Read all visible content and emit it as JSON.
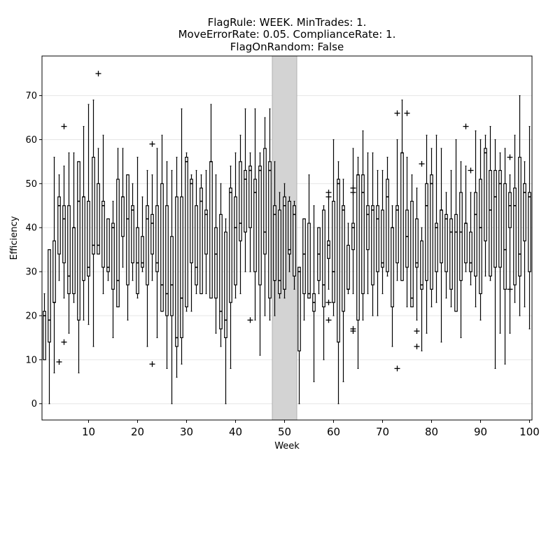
{
  "chart_data": {
    "type": "box",
    "title_lines": [
      "FlagRule: WEEK. MinTrades: 1.",
      "MoveErrorRate: 0.05. ComplianceRate: 1.",
      "FlagOnRandom: False"
    ],
    "xlabel": "Week",
    "ylabel": "Efficiency",
    "xlim": [
      0.5,
      100.5
    ],
    "ylim": [
      -3.7,
      79
    ],
    "xticks": [
      10,
      20,
      30,
      40,
      50,
      60,
      70,
      80,
      90,
      100
    ],
    "yticks": [
      0,
      10,
      20,
      30,
      40,
      50,
      60,
      70
    ],
    "grid": "horizontal",
    "shaded_span": {
      "x": [
        47.5,
        52.5
      ],
      "color": "#d3d3d3"
    },
    "colors": {
      "box": "#000000",
      "grid": "#e6e6e6",
      "shade": "#d3d3d3"
    },
    "boxes": [
      {
        "week": 1,
        "wlo": 10,
        "q1": 10,
        "med": 20,
        "q3": 21,
        "whi": 25,
        "outliers": []
      },
      {
        "week": 2,
        "wlo": 0,
        "q1": 14,
        "med": 19,
        "q3": 35,
        "whi": 35,
        "outliers": []
      },
      {
        "week": 3,
        "wlo": 7,
        "q1": 23,
        "med": 23,
        "q3": 37,
        "whi": 56,
        "outliers": []
      },
      {
        "week": 4,
        "wlo": 28,
        "q1": 34,
        "med": 45,
        "q3": 47,
        "whi": 52,
        "outliers": [
          9.5
        ]
      },
      {
        "week": 5,
        "wlo": 24,
        "q1": 32,
        "med": 42,
        "q3": 45,
        "whi": 54,
        "outliers": [
          63,
          14
        ]
      },
      {
        "week": 6,
        "wlo": 16,
        "q1": 25,
        "med": 29,
        "q3": 45,
        "whi": 57,
        "outliers": []
      },
      {
        "week": 7,
        "wlo": 23,
        "q1": 25,
        "med": 40,
        "q3": 40,
        "whi": 57,
        "outliers": []
      },
      {
        "week": 8,
        "wlo": 7,
        "q1": 19,
        "med": 46,
        "q3": 55,
        "whi": 55,
        "outliers": []
      },
      {
        "week": 9,
        "wlo": 19,
        "q1": 28,
        "med": 47,
        "q3": 47,
        "whi": 63,
        "outliers": []
      },
      {
        "week": 10,
        "wlo": 18,
        "q1": 29,
        "med": 31,
        "q3": 46,
        "whi": 68,
        "outliers": []
      },
      {
        "week": 11,
        "wlo": 13,
        "q1": 34,
        "med": 36,
        "q3": 56,
        "whi": 69,
        "outliers": []
      },
      {
        "week": 12,
        "wlo": 34,
        "q1": 34,
        "med": 36,
        "q3": 50,
        "whi": 58,
        "outliers": [
          75
        ]
      },
      {
        "week": 13,
        "wlo": 25,
        "q1": 31,
        "med": 45,
        "q3": 46,
        "whi": 61,
        "outliers": []
      },
      {
        "week": 14,
        "wlo": 28,
        "q1": 30,
        "med": 31,
        "q3": 42,
        "whi": 42,
        "outliers": []
      },
      {
        "week": 15,
        "wlo": 15,
        "q1": 26,
        "med": 40,
        "q3": 41,
        "whi": 46,
        "outliers": []
      },
      {
        "week": 16,
        "wlo": 22,
        "q1": 22,
        "med": 28,
        "q3": 51,
        "whi": 58,
        "outliers": []
      },
      {
        "week": 17,
        "wlo": 31,
        "q1": 38,
        "med": 47,
        "q3": 47,
        "whi": 58,
        "outliers": []
      },
      {
        "week": 18,
        "wlo": 19,
        "q1": 27,
        "med": 42,
        "q3": 52,
        "whi": 52,
        "outliers": []
      },
      {
        "week": 19,
        "wlo": 28,
        "q1": 32,
        "med": 44,
        "q3": 45,
        "whi": 50,
        "outliers": []
      },
      {
        "week": 20,
        "wlo": 24,
        "q1": 25,
        "med": 32,
        "q3": 40,
        "whi": 56,
        "outliers": []
      },
      {
        "week": 21,
        "wlo": 30,
        "q1": 31,
        "med": 32,
        "q3": 38,
        "whi": 47,
        "outliers": []
      },
      {
        "week": 22,
        "wlo": 13,
        "q1": 27,
        "med": 42,
        "q3": 45,
        "whi": 53,
        "outliers": []
      },
      {
        "week": 23,
        "wlo": 28,
        "q1": 34,
        "med": 41,
        "q3": 43,
        "whi": 52,
        "outliers": [
          59,
          9
        ]
      },
      {
        "week": 24,
        "wlo": 15,
        "q1": 30,
        "med": 32,
        "q3": 45,
        "whi": 58,
        "outliers": []
      },
      {
        "week": 25,
        "wlo": 21,
        "q1": 21,
        "med": 27,
        "q3": 50,
        "whi": 61,
        "outliers": []
      },
      {
        "week": 26,
        "wlo": 8,
        "q1": 20,
        "med": 25,
        "q3": 45,
        "whi": 55,
        "outliers": []
      },
      {
        "week": 27,
        "wlo": 0,
        "q1": 20,
        "med": 27,
        "q3": 38,
        "whi": 53,
        "outliers": []
      },
      {
        "week": 28,
        "wlo": 6,
        "q1": 13,
        "med": 15,
        "q3": 47,
        "whi": 56,
        "outliers": []
      },
      {
        "week": 29,
        "wlo": 9,
        "q1": 15,
        "med": 24,
        "q3": 47,
        "whi": 67,
        "outliers": []
      },
      {
        "week": 30,
        "wlo": 21,
        "q1": 22,
        "med": 55,
        "q3": 56,
        "whi": 57,
        "outliers": []
      },
      {
        "week": 31,
        "wlo": 21,
        "q1": 32,
        "med": 50,
        "q3": 51,
        "whi": 52,
        "outliers": []
      },
      {
        "week": 32,
        "wlo": 25,
        "q1": 27,
        "med": 31,
        "q3": 45,
        "whi": 53,
        "outliers": []
      },
      {
        "week": 33,
        "wlo": 25,
        "q1": 25,
        "med": 46,
        "q3": 49,
        "whi": 52,
        "outliers": []
      },
      {
        "week": 34,
        "wlo": 25,
        "q1": 34,
        "med": 43,
        "q3": 44,
        "whi": 53,
        "outliers": []
      },
      {
        "week": 35,
        "wlo": 24,
        "q1": 24,
        "med": 55,
        "q3": 55,
        "whi": 68,
        "outliers": []
      },
      {
        "week": 36,
        "wlo": 16,
        "q1": 24,
        "med": 34,
        "q3": 40,
        "whi": 52,
        "outliers": []
      },
      {
        "week": 37,
        "wlo": 13,
        "q1": 17,
        "med": 21,
        "q3": 43,
        "whi": 50,
        "outliers": []
      },
      {
        "week": 38,
        "wlo": 0,
        "q1": 15,
        "med": 19,
        "q3": 39,
        "whi": 42,
        "outliers": []
      },
      {
        "week": 39,
        "wlo": 8,
        "q1": 23,
        "med": 48,
        "q3": 49,
        "whi": 54,
        "outliers": []
      },
      {
        "week": 40,
        "wlo": 24,
        "q1": 27,
        "med": 40,
        "q3": 47,
        "whi": 57,
        "outliers": []
      },
      {
        "week": 41,
        "wlo": 25,
        "q1": 37,
        "med": 41,
        "q3": 55,
        "whi": 61,
        "outliers": []
      },
      {
        "week": 42,
        "wlo": 30,
        "q1": 39,
        "med": 51,
        "q3": 53,
        "whi": 67,
        "outliers": []
      },
      {
        "week": 43,
        "wlo": 30,
        "q1": 40,
        "med": 53,
        "q3": 54,
        "whi": 57,
        "outliers": [
          19
        ]
      },
      {
        "week": 44,
        "wlo": 19,
        "q1": 30,
        "med": 48,
        "q3": 51,
        "whi": 67,
        "outliers": []
      },
      {
        "week": 45,
        "wlo": 11,
        "q1": 27,
        "med": 53,
        "q3": 54,
        "whi": 57,
        "outliers": []
      },
      {
        "week": 46,
        "wlo": 20,
        "q1": 34,
        "med": 39,
        "q3": 58,
        "whi": 65,
        "outliers": []
      },
      {
        "week": 47,
        "wlo": 19,
        "q1": 24,
        "med": 53,
        "q3": 55,
        "whi": 67,
        "outliers": []
      },
      {
        "week": 48,
        "wlo": 20,
        "q1": 28,
        "med": 43,
        "q3": 45,
        "whi": 55,
        "outliers": []
      },
      {
        "week": 49,
        "wlo": 24,
        "q1": 25,
        "med": 28,
        "q3": 44,
        "whi": 48,
        "outliers": []
      },
      {
        "week": 50,
        "wlo": 24,
        "q1": 26,
        "med": 45,
        "q3": 47,
        "whi": 50,
        "outliers": []
      },
      {
        "week": 51,
        "wlo": 30,
        "q1": 34,
        "med": 35,
        "q3": 46,
        "whi": 47,
        "outliers": []
      },
      {
        "week": 52,
        "wlo": 26,
        "q1": 29,
        "med": 43,
        "q3": 45,
        "whi": 46,
        "outliers": []
      },
      {
        "week": 53,
        "wlo": 0,
        "q1": 12,
        "med": 30,
        "q3": 31,
        "whi": 31,
        "outliers": []
      },
      {
        "week": 54,
        "wlo": 19,
        "q1": 25,
        "med": 34,
        "q3": 42,
        "whi": 42,
        "outliers": []
      },
      {
        "week": 55,
        "wlo": 24,
        "q1": 24,
        "med": 25,
        "q3": 41,
        "whi": 52,
        "outliers": []
      },
      {
        "week": 56,
        "wlo": 5,
        "q1": 21,
        "med": 23,
        "q3": 25,
        "whi": 45,
        "outliers": []
      },
      {
        "week": 57,
        "wlo": 25,
        "q1": 28,
        "med": 34,
        "q3": 40,
        "whi": 40,
        "outliers": []
      },
      {
        "week": 58,
        "wlo": 10,
        "q1": 22,
        "med": 27,
        "q3": 44,
        "whi": 45,
        "outliers": []
      },
      {
        "week": 59,
        "wlo": 26,
        "q1": 33,
        "med": 36,
        "q3": 37,
        "whi": 47,
        "outliers": [
          48,
          47,
          23,
          19
        ]
      },
      {
        "week": 60,
        "wlo": 20,
        "q1": 23,
        "med": 30,
        "q3": 46,
        "whi": 60,
        "outliers": []
      },
      {
        "week": 61,
        "wlo": 0,
        "q1": 14,
        "med": 50,
        "q3": 51,
        "whi": 55,
        "outliers": []
      },
      {
        "week": 62,
        "wlo": 5,
        "q1": 21,
        "med": 44,
        "q3": 45,
        "whi": 51,
        "outliers": []
      },
      {
        "week": 63,
        "wlo": 25,
        "q1": 26,
        "med": 26,
        "q3": 36,
        "whi": 41,
        "outliers": []
      },
      {
        "week": 64,
        "wlo": 25,
        "q1": 35,
        "med": 40,
        "q3": 41,
        "whi": 58,
        "outliers": [
          49,
          48,
          17,
          16.5
        ]
      },
      {
        "week": 65,
        "wlo": 8,
        "q1": 19,
        "med": 52,
        "q3": 52,
        "whi": 56,
        "outliers": []
      },
      {
        "week": 66,
        "wlo": 19,
        "q1": 25,
        "med": 48,
        "q3": 52,
        "whi": 62,
        "outliers": []
      },
      {
        "week": 67,
        "wlo": 25,
        "q1": 35,
        "med": 43,
        "q3": 45,
        "whi": 57,
        "outliers": []
      },
      {
        "week": 68,
        "wlo": 20,
        "q1": 27,
        "med": 44,
        "q3": 45,
        "whi": 57,
        "outliers": []
      },
      {
        "week": 69,
        "wlo": 20,
        "q1": 30,
        "med": 42,
        "q3": 45,
        "whi": 53,
        "outliers": []
      },
      {
        "week": 70,
        "wlo": 25,
        "q1": 31,
        "med": 32,
        "q3": 44,
        "whi": 53,
        "outliers": []
      },
      {
        "week": 71,
        "wlo": 29,
        "q1": 30,
        "med": 47,
        "q3": 51,
        "whi": 56,
        "outliers": []
      },
      {
        "week": 72,
        "wlo": 13,
        "q1": 22,
        "med": 40,
        "q3": 40,
        "whi": 45,
        "outliers": []
      },
      {
        "week": 73,
        "wlo": 28,
        "q1": 32,
        "med": 44,
        "q3": 45,
        "whi": 60,
        "outliers": [
          66,
          8
        ]
      },
      {
        "week": 74,
        "wlo": 28,
        "q1": 28,
        "med": 57,
        "q3": 57,
        "whi": 69,
        "outliers": []
      },
      {
        "week": 75,
        "wlo": 22,
        "q1": 31,
        "med": 38,
        "q3": 44,
        "whi": 56,
        "outliers": [
          66
        ]
      },
      {
        "week": 76,
        "wlo": 22,
        "q1": 22,
        "med": 24,
        "q3": 46,
        "whi": 52,
        "outliers": []
      },
      {
        "week": 77,
        "wlo": 19,
        "q1": 31,
        "med": 32,
        "q3": 42,
        "whi": 49,
        "outliers": [
          16.5,
          13
        ]
      },
      {
        "week": 78,
        "wlo": 12,
        "q1": 26,
        "med": 27,
        "q3": 37,
        "whi": 40,
        "outliers": [
          54.5
        ]
      },
      {
        "week": 79,
        "wlo": 16,
        "q1": 28,
        "med": 45,
        "q3": 50,
        "whi": 61,
        "outliers": []
      },
      {
        "week": 80,
        "wlo": 22,
        "q1": 26,
        "med": 50,
        "q3": 52,
        "whi": 58,
        "outliers": []
      },
      {
        "week": 81,
        "wlo": 23,
        "q1": 30,
        "med": 40,
        "q3": 41,
        "whi": 61,
        "outliers": []
      },
      {
        "week": 82,
        "wlo": 14,
        "q1": 32,
        "med": 44,
        "q3": 44,
        "whi": 58,
        "outliers": []
      },
      {
        "week": 83,
        "wlo": 24,
        "q1": 30,
        "med": 42,
        "q3": 43,
        "whi": 48,
        "outliers": []
      },
      {
        "week": 84,
        "wlo": 22,
        "q1": 26,
        "med": 39,
        "q3": 42,
        "whi": 53,
        "outliers": []
      },
      {
        "week": 85,
        "wlo": 21,
        "q1": 21,
        "med": 39,
        "q3": 43,
        "whi": 60,
        "outliers": []
      },
      {
        "week": 86,
        "wlo": 15,
        "q1": 28,
        "med": 39,
        "q3": 48,
        "whi": 55,
        "outliers": []
      },
      {
        "week": 87,
        "wlo": 30,
        "q1": 32,
        "med": 41,
        "q3": 41,
        "whi": 54,
        "outliers": [
          63
        ]
      },
      {
        "week": 88,
        "wlo": 27,
        "q1": 30,
        "med": 32,
        "q3": 39,
        "whi": 48,
        "outliers": [
          53
        ]
      },
      {
        "week": 89,
        "wlo": 22,
        "q1": 29,
        "med": 43,
        "q3": 48,
        "whi": 62,
        "outliers": []
      },
      {
        "week": 90,
        "wlo": 19,
        "q1": 25,
        "med": 40,
        "q3": 51,
        "whi": 60,
        "outliers": []
      },
      {
        "week": 91,
        "wlo": 29,
        "q1": 37,
        "med": 57,
        "q3": 58,
        "whi": 61,
        "outliers": []
      },
      {
        "week": 92,
        "wlo": 28,
        "q1": 29,
        "med": 44,
        "q3": 53,
        "whi": 63,
        "outliers": []
      },
      {
        "week": 93,
        "wlo": 8,
        "q1": 31,
        "med": 47,
        "q3": 53,
        "whi": 60,
        "outliers": []
      },
      {
        "week": 94,
        "wlo": 16,
        "q1": 31,
        "med": 50,
        "q3": 53,
        "whi": 57,
        "outliers": []
      },
      {
        "week": 95,
        "wlo": 9,
        "q1": 26,
        "med": 35,
        "q3": 50,
        "whi": 58,
        "outliers": []
      },
      {
        "week": 96,
        "wlo": 16,
        "q1": 40,
        "med": 45,
        "q3": 48,
        "whi": 52,
        "outliers": [
          56,
          26
        ]
      },
      {
        "week": 97,
        "wlo": 23,
        "q1": 27,
        "med": 45,
        "q3": 49,
        "whi": 61,
        "outliers": []
      },
      {
        "week": 98,
        "wlo": 20,
        "q1": 29,
        "med": 34,
        "q3": 56,
        "whi": 70,
        "outliers": []
      },
      {
        "week": 99,
        "wlo": 22,
        "q1": 37,
        "med": 48,
        "q3": 50,
        "whi": 55,
        "outliers": []
      },
      {
        "week": 100,
        "wlo": 17,
        "q1": 30,
        "med": 47,
        "q3": 48,
        "whi": 63,
        "outliers": []
      }
    ]
  }
}
